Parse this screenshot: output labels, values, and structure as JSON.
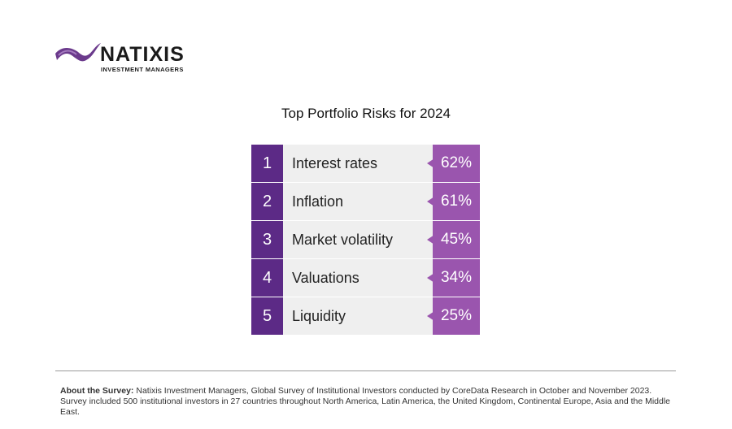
{
  "header": {
    "brand": "NATIXIS",
    "tagline": "INVESTMENT MANAGERS"
  },
  "title": "Top Portfolio Risks for 2024",
  "table": {
    "rows": [
      [
        "1",
        "Interest rates",
        "62%"
      ],
      [
        "2",
        "Inflation",
        "61%"
      ],
      [
        "3",
        "Market volatility",
        "45%"
      ],
      [
        "4",
        "Valuations",
        "34%"
      ],
      [
        "5",
        "Liquidity",
        "25%"
      ]
    ]
  },
  "footer": {
    "label": "About the Survey:",
    "text": "Natixis Investment Managers, Global Survey of Institutional Investors conducted by CoreData Research in October and November 2023. Survey included 500 institutional investors in 27 countries throughout North America, Latin America, the United Kingdom, Continental Europe, Asia and the Middle East."
  }
}
